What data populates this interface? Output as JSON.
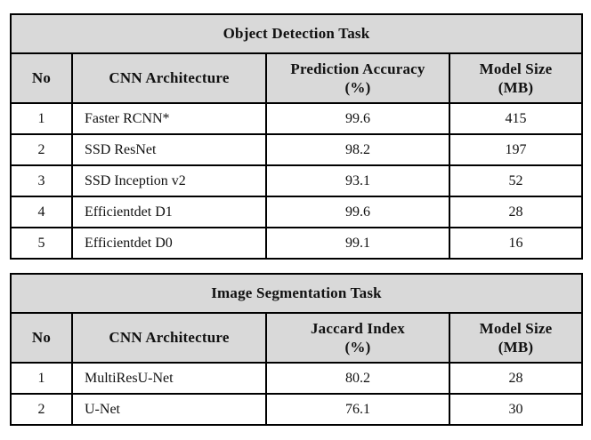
{
  "styles": {
    "header_background": "#d9d9d9",
    "border_color": "#000000",
    "page_background": "#ffffff"
  },
  "tables": [
    {
      "title": "Object Detection Task",
      "columns": [
        "No",
        "CNN Architecture",
        "Prediction Accuracy\n(%)",
        "Model Size\n(MB)"
      ],
      "rows": [
        [
          "1",
          "Faster RCNN*",
          "99.6",
          "415"
        ],
        [
          "2",
          "SSD ResNet",
          "98.2",
          "197"
        ],
        [
          "3",
          "SSD Inception v2",
          "93.1",
          "52"
        ],
        [
          "4",
          "Efficientdet D1",
          "99.6",
          "28"
        ],
        [
          "5",
          "Efficientdet D0",
          "99.1",
          "16"
        ]
      ]
    },
    {
      "title": "Image Segmentation Task",
      "columns": [
        "No",
        "CNN Architecture",
        "Jaccard Index\n(%)",
        "Model Size\n(MB)"
      ],
      "rows": [
        [
          "1",
          "MultiResU-Net",
          "80.2",
          "28"
        ],
        [
          "2",
          "U-Net",
          "76.1",
          "30"
        ]
      ]
    }
  ]
}
